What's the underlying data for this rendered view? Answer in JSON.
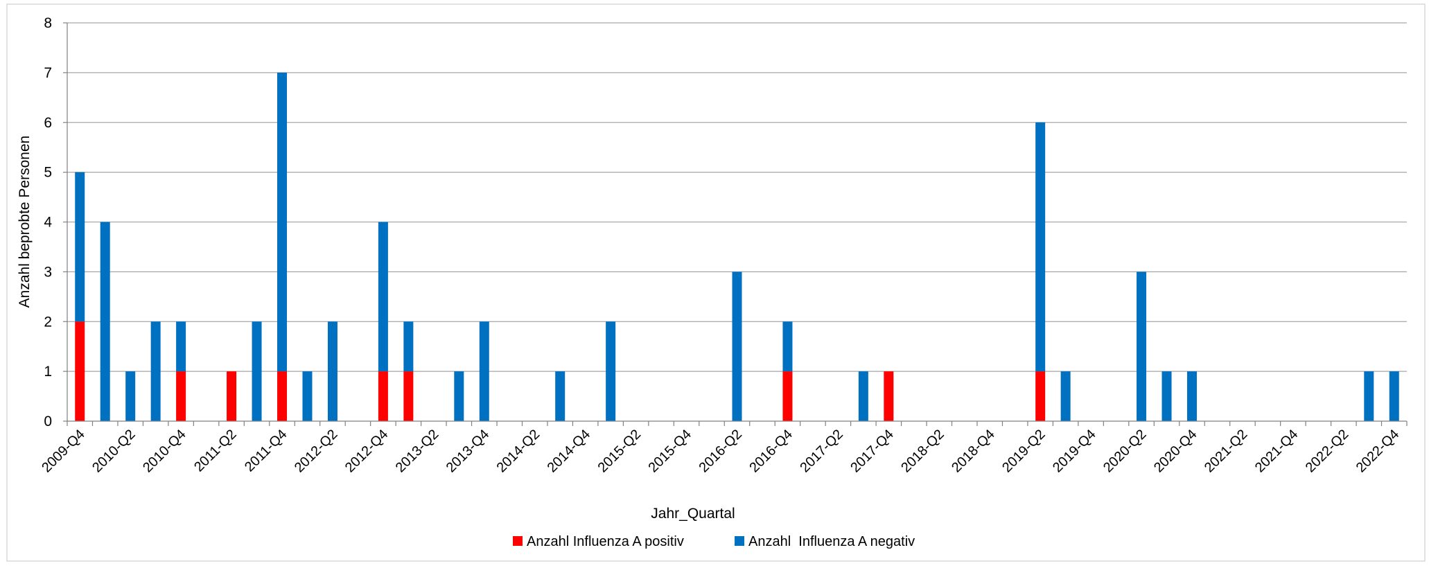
{
  "chart_data": {
    "type": "bar",
    "stacked": true,
    "title": "",
    "xlabel": "Jahr_Quartal",
    "ylabel": "Anzahl beprobte Personen",
    "ylim": [
      0,
      8
    ],
    "yticks": [
      "0",
      "1",
      "2",
      "3",
      "4",
      "5",
      "6",
      "7",
      "8"
    ],
    "grid": true,
    "legend_position": "bottom",
    "categories": [
      "2009-Q4",
      "2010-Q1",
      "2010-Q2",
      "2010-Q3",
      "2010-Q4",
      "2011-Q1",
      "2011-Q2",
      "2011-Q3",
      "2011-Q4",
      "2012-Q1",
      "2012-Q2",
      "2012-Q3",
      "2012-Q4",
      "2013-Q1",
      "2013-Q2",
      "2013-Q3",
      "2013-Q4",
      "2014-Q1",
      "2014-Q2",
      "2014-Q3",
      "2014-Q4",
      "2015-Q1",
      "2015-Q2",
      "2015-Q3",
      "2015-Q4",
      "2016-Q1",
      "2016-Q2",
      "2016-Q3",
      "2016-Q4",
      "2017-Q1",
      "2017-Q2",
      "2017-Q3",
      "2017-Q4",
      "2018-Q1",
      "2018-Q2",
      "2018-Q3",
      "2018-Q4",
      "2019-Q1",
      "2019-Q2",
      "2019-Q3",
      "2019-Q4",
      "2020-Q1",
      "2020-Q2",
      "2020-Q3",
      "2020-Q4",
      "2021-Q1",
      "2021-Q2",
      "2021-Q3",
      "2021-Q4",
      "2022-Q1",
      "2022-Q2",
      "2022-Q3",
      "2022-Q4"
    ],
    "visible_tick_labels": [
      "2009-Q4",
      "2010-Q2",
      "2010-Q4",
      "2011-Q2",
      "2011-Q4",
      "2012-Q2",
      "2012-Q4",
      "2013-Q2",
      "2013-Q4",
      "2014-Q2",
      "2014-Q4",
      "2015-Q2",
      "2015-Q4",
      "2016-Q2",
      "2016-Q4",
      "2017-Q2",
      "2017-Q4",
      "2018-Q2",
      "2018-Q4",
      "2019-Q2",
      "2019-Q4",
      "2020-Q2",
      "2020-Q4",
      "2021-Q2",
      "2021-Q4",
      "2022-Q2",
      "2022-Q4"
    ],
    "series": [
      {
        "name": "Anzahl Influenza A positiv",
        "color": "#FF0000",
        "values": [
          2,
          0,
          0,
          0,
          1,
          0,
          1,
          0,
          1,
          0,
          0,
          0,
          1,
          1,
          0,
          0,
          0,
          0,
          0,
          0,
          0,
          0,
          0,
          0,
          0,
          0,
          0,
          0,
          1,
          0,
          0,
          0,
          1,
          0,
          0,
          0,
          0,
          0,
          1,
          0,
          0,
          0,
          0,
          0,
          0,
          0,
          0,
          0,
          0,
          0,
          0,
          0,
          0
        ]
      },
      {
        "name": "Anzahl  Influenza A negativ",
        "color": "#0070C0",
        "values": [
          3,
          4,
          1,
          2,
          1,
          0,
          0,
          2,
          6,
          1,
          2,
          0,
          3,
          1,
          0,
          1,
          2,
          0,
          0,
          1,
          0,
          2,
          0,
          0,
          0,
          0,
          3,
          0,
          1,
          0,
          0,
          1,
          0,
          0,
          0,
          0,
          0,
          0,
          5,
          1,
          0,
          0,
          3,
          1,
          1,
          0,
          0,
          0,
          0,
          0,
          0,
          1,
          1
        ]
      }
    ]
  }
}
